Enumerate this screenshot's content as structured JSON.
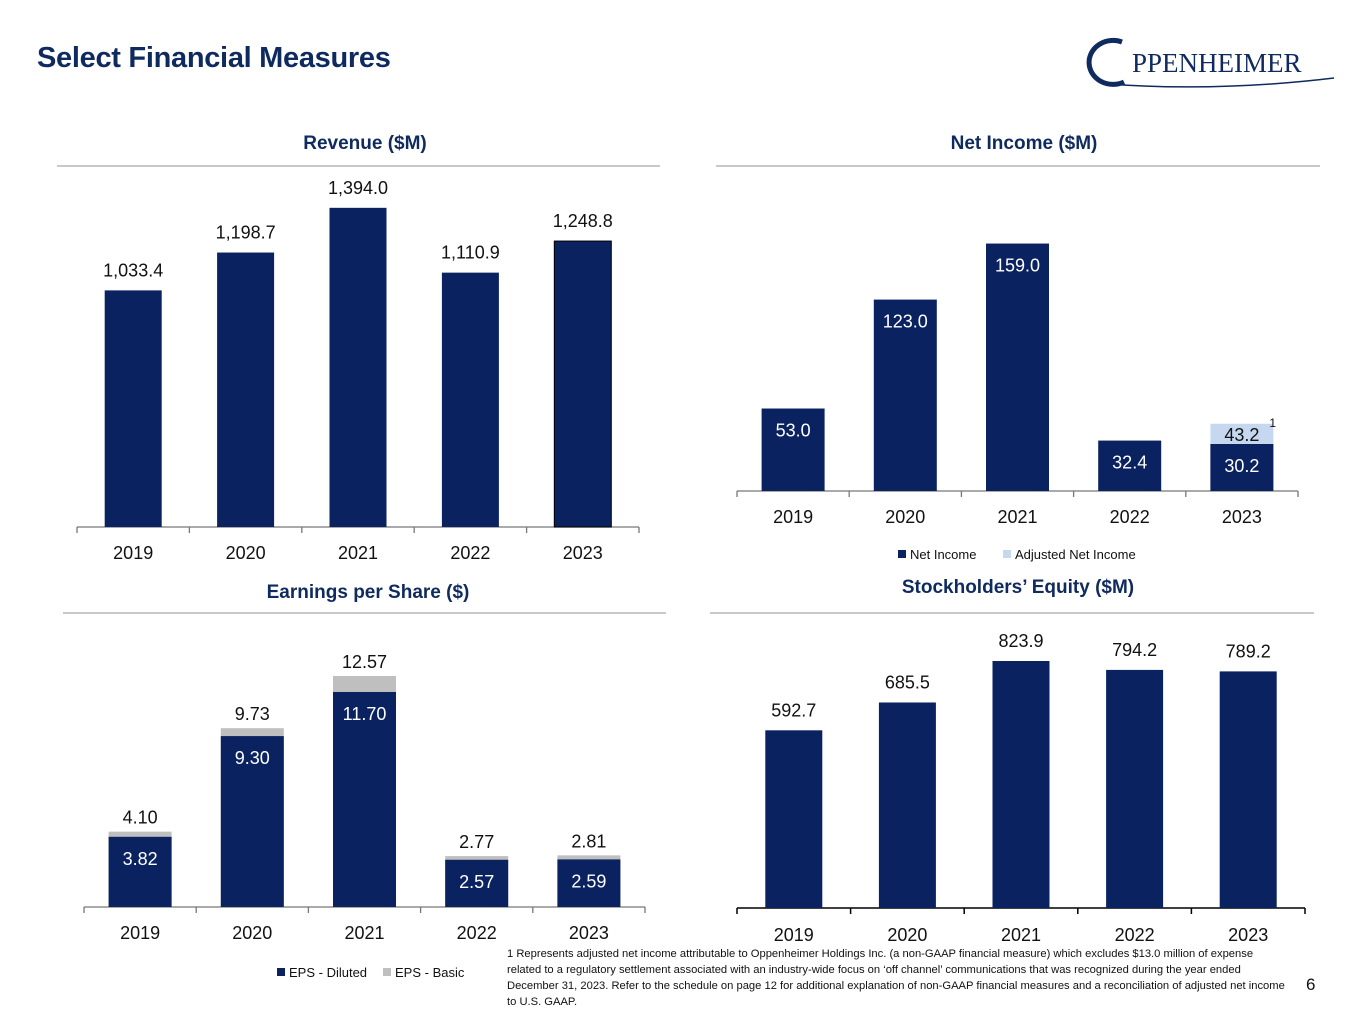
{
  "page": {
    "title": "Select Financial Measures",
    "logo_text": "PPENHEIMER",
    "page_number": "6",
    "footnote": "1 Represents adjusted net income attributable to Oppenheimer Holdings Inc. (a non-GAAP financial measure) which excludes $13.0 million of expense related to a regulatory settlement associated with an industry-wide focus on ‘off channel’ communications that was recognized during the year ended December 31, 2023.  Refer to the schedule on page 12 for additional explanation of non-GAAP financial measures and a reconciliation of adjusted net income to U.S. GAAP."
  },
  "colors": {
    "navy": "#0b2260",
    "light_blue": "#c5d8ef",
    "gray": "#bfbfbf",
    "title": "#0f2a5e"
  },
  "chart_data": [
    {
      "id": "revenue",
      "type": "bar",
      "title": "Revenue ($M)",
      "categories": [
        "2019",
        "2020",
        "2021",
        "2022",
        "2023"
      ],
      "series": [
        {
          "name": "Revenue",
          "values": [
            1033.4,
            1198.7,
            1394.0,
            1110.9,
            1248.8
          ]
        }
      ],
      "labels": [
        "1,033.4",
        "1,198.7",
        "1,394.0",
        "1,110.9",
        "1,248.8"
      ],
      "ylim": [
        0,
        1450
      ]
    },
    {
      "id": "net_income",
      "type": "bar",
      "title": "Net Income ($M)",
      "categories": [
        "2019",
        "2020",
        "2021",
        "2022",
        "2023"
      ],
      "series": [
        {
          "name": "Net Income",
          "values": [
            53.0,
            123.0,
            159.0,
            32.4,
            30.2
          ]
        },
        {
          "name": "Adjusted Net Income",
          "values": [
            null,
            null,
            null,
            null,
            43.2
          ]
        }
      ],
      "labels": [
        "53.0",
        "123.0",
        "159.0",
        "32.4",
        "30.2"
      ],
      "adjusted_label": "43.2",
      "adjusted_footnote_mark": "1",
      "legend": [
        "Net Income",
        "Adjusted Net Income"
      ],
      "ylim": [
        0,
        160
      ]
    },
    {
      "id": "eps",
      "type": "bar",
      "title": "Earnings per Share ($)",
      "categories": [
        "2019",
        "2020",
        "2021",
        "2022",
        "2023"
      ],
      "series": [
        {
          "name": "EPS - Diluted",
          "values": [
            3.82,
            9.3,
            11.7,
            2.57,
            2.59
          ]
        },
        {
          "name": "EPS - Basic",
          "values": [
            4.1,
            9.73,
            12.57,
            2.77,
            2.81
          ]
        }
      ],
      "diluted_labels": [
        "3.82",
        "9.30",
        "11.70",
        "2.57",
        "2.59"
      ],
      "basic_labels": [
        "4.10",
        "9.73",
        "12.57",
        "2.77",
        "2.81"
      ],
      "legend": [
        "EPS - Diluted",
        "EPS - Basic"
      ],
      "ylim": [
        0,
        13
      ]
    },
    {
      "id": "equity",
      "type": "bar",
      "title": "Stockholders’ Equity ($M)",
      "categories": [
        "2019",
        "2020",
        "2021",
        "2022",
        "2023"
      ],
      "series": [
        {
          "name": "Stockholders’ Equity",
          "values": [
            592.7,
            685.5,
            823.9,
            794.2,
            789.2
          ]
        }
      ],
      "labels": [
        "592.7",
        "685.5",
        "823.9",
        "794.2",
        "789.2"
      ],
      "ylim": [
        0,
        830
      ]
    }
  ]
}
